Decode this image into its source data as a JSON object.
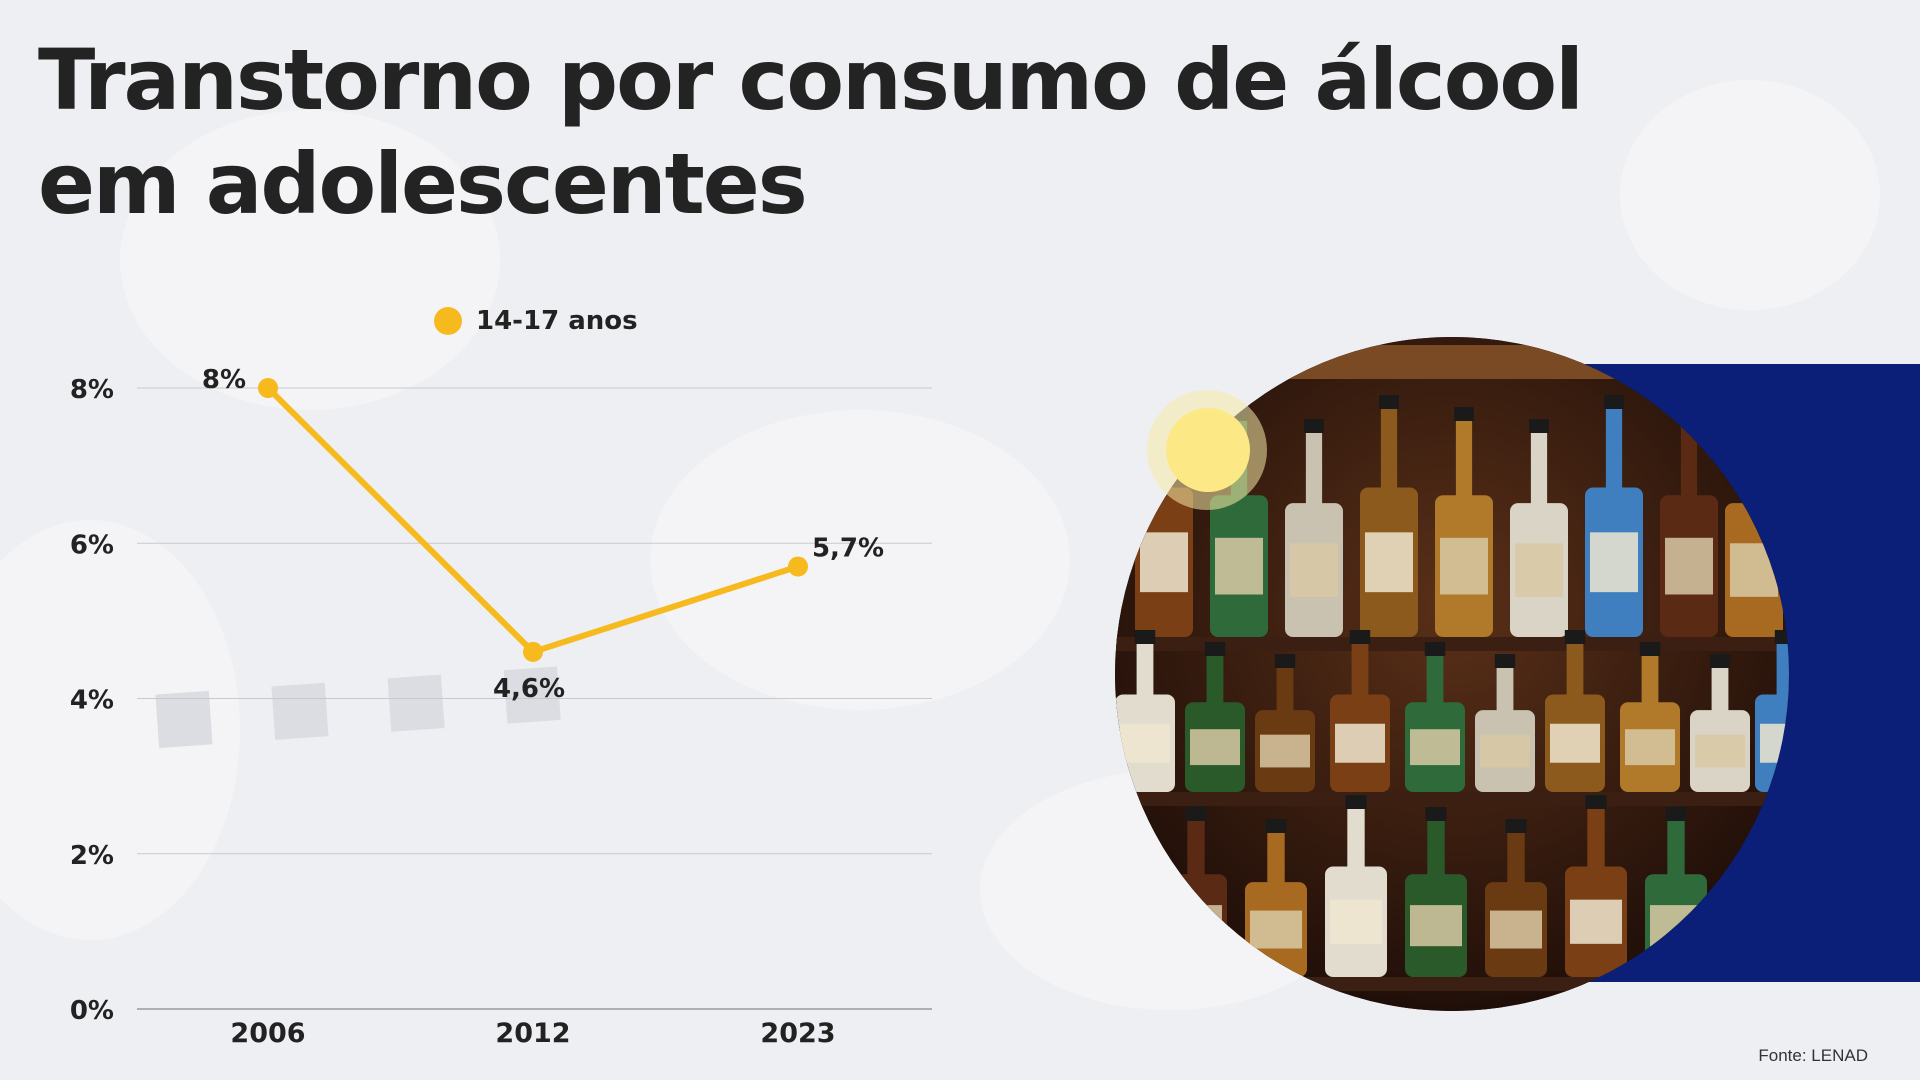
{
  "title": {
    "line1": "Transtorno por consumo de álcool",
    "line2": "em adolescentes"
  },
  "legend": {
    "label": "14-17 anos",
    "color": "#f6b91e"
  },
  "source": "Fonte: LENAD",
  "image": {
    "subject": "bottles-on-bar-shelves-photo"
  },
  "chart_data": {
    "type": "line",
    "title": "",
    "xlabel": "",
    "ylabel": "",
    "categories": [
      "2006",
      "2012",
      "2023"
    ],
    "series": [
      {
        "name": "14-17 anos",
        "values": [
          8,
          4.6,
          5.7
        ],
        "labels": [
          "8%",
          "4,6%",
          "5,7%"
        ],
        "color": "#f6b91e"
      }
    ],
    "ylim": [
      0,
      8
    ],
    "yticks": [
      0,
      2,
      4,
      6,
      8
    ],
    "yticklabels": [
      "0%",
      "2%",
      "4%",
      "6%",
      "8%"
    ],
    "grid": true,
    "legend_position": "top"
  }
}
